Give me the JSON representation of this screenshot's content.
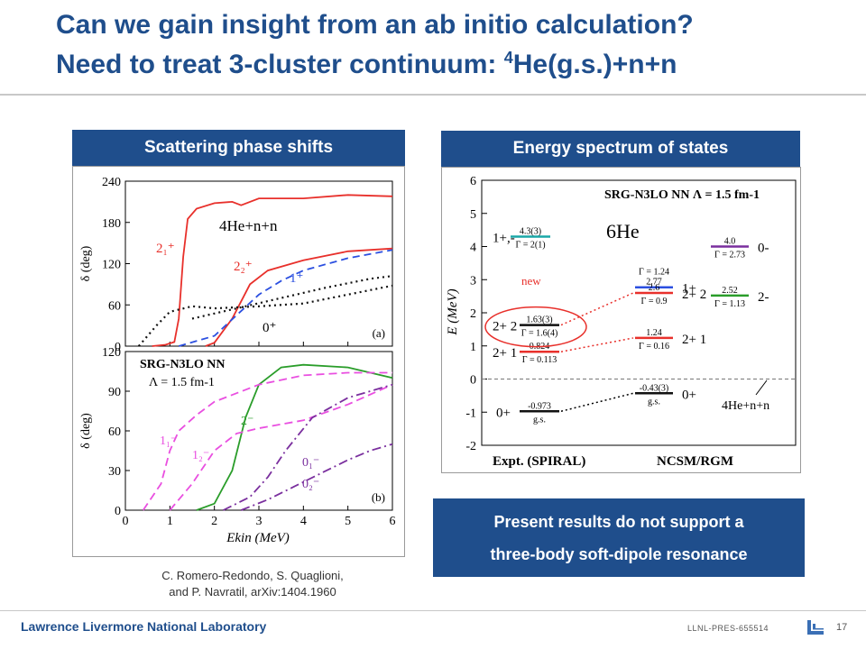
{
  "header": {
    "title_line1": "Can we gain insight from an ab initio calculation?",
    "title_line2_pre": "Need to treat 3-cluster continuum: ",
    "title_line2_sup": "4",
    "title_line2_post": "He(g.s.)+n+n"
  },
  "left_panel": {
    "heading": "Scattering phase shifts",
    "chart_data": [
      {
        "type": "line",
        "panel_label": "(a)",
        "annotation": "4He+n+n",
        "ylabel": "δ (deg)",
        "ylim": [
          0,
          240
        ],
        "yticks": [
          "0",
          "60",
          "120",
          "180",
          "240"
        ],
        "xlim": [
          0,
          6
        ],
        "series": [
          {
            "name": "2_1+",
            "color": "#e8302b",
            "x": [
              0.6,
              0.9,
              1.1,
              1.2,
              1.3,
              1.4,
              1.6,
              2.0,
              2.4,
              2.6,
              3.0,
              4.0,
              5.0,
              6.0
            ],
            "values": [
              0,
              2,
              6,
              40,
              130,
              185,
              200,
              208,
              210,
              205,
              215,
              215,
              220,
              218
            ]
          },
          {
            "name": "2_2+",
            "color": "#e8302b",
            "x": [
              1.8,
              2.0,
              2.4,
              2.8,
              3.2,
              4.0,
              5.0,
              6.0
            ],
            "values": [
              0,
              5,
              40,
              90,
              110,
              125,
              138,
              142
            ]
          },
          {
            "name": "1+",
            "color": "#2b4fe0",
            "x": [
              1.2,
              2.0,
              2.5,
              3.0,
              3.5,
              4.0,
              5.0,
              6.0
            ],
            "values": [
              0,
              15,
              45,
              75,
              95,
              110,
              128,
              140
            ]
          },
          {
            "name": "0+",
            "color": "#111111",
            "x": [
              0.3,
              0.7,
              1.0,
              1.5,
              2.0,
              3.0,
              4.0,
              5.0,
              6.0
            ],
            "values": [
              0,
              30,
              50,
              58,
              55,
              58,
              62,
              75,
              88
            ]
          },
          {
            "name": "upper dotted",
            "color": "#111111",
            "x": [
              1.5,
              2.5,
              3.5,
              4.5,
              5.5,
              6.0
            ],
            "values": [
              40,
              55,
              70,
              85,
              98,
              102
            ]
          }
        ]
      },
      {
        "type": "line",
        "panel_label": "(b)",
        "annotation_line1": "SRG-N3LO NN",
        "annotation_line2": "Λ = 1.5 fm-1",
        "ylabel": "δ (deg)",
        "xlabel": "Ekin (MeV)",
        "ylim": [
          0,
          120
        ],
        "yticks": [
          "0",
          "30",
          "60",
          "90",
          "120"
        ],
        "xlim": [
          0,
          6
        ],
        "xticks": [
          "0",
          "1",
          "2",
          "3",
          "4",
          "5",
          "6"
        ],
        "series": [
          {
            "name": "2-",
            "color": "#2a9d2a",
            "x": [
              1.6,
              2.0,
              2.4,
              2.7,
              3.0,
              3.5,
              4.0,
              5.0,
              6.0
            ],
            "values": [
              0,
              5,
              30,
              70,
              95,
              108,
              110,
              108,
              100
            ]
          },
          {
            "name": "1_1-",
            "color": "#e94fe0",
            "x": [
              0.4,
              0.8,
              1.0,
              1.2,
              1.6,
              2.0,
              3.0,
              4.0,
              5.0,
              6.0
            ],
            "values": [
              0,
              20,
              45,
              60,
              72,
              82,
              95,
              102,
              104,
              104
            ]
          },
          {
            "name": "1_2-",
            "color": "#e94fe0",
            "x": [
              1.0,
              1.5,
              2.0,
              2.5,
              3.0,
              4.0,
              5.0,
              6.0
            ],
            "values": [
              0,
              20,
              45,
              58,
              62,
              68,
              80,
              95
            ]
          },
          {
            "name": "0_1-",
            "color": "#7a2f9e",
            "x": [
              2.2,
              2.8,
              3.2,
              3.6,
              4.2,
              5.0,
              6.0
            ],
            "values": [
              0,
              10,
              25,
              45,
              70,
              85,
              95
            ]
          },
          {
            "name": "0_2-",
            "color": "#7a2f9e",
            "x": [
              2.6,
              3.2,
              3.8,
              4.4,
              5.0,
              5.5,
              6.0
            ],
            "values": [
              0,
              8,
              18,
              28,
              38,
              45,
              50
            ]
          }
        ]
      }
    ],
    "citation_line1": "C. Romero-Redondo, S. Quaglioni,",
    "citation_line2": "and  P. Navratil, arXiv:1404.1960"
  },
  "right_panel": {
    "heading": "Energy spectrum of states",
    "chart_data": {
      "type": "table",
      "title": "SRG-N3LO NN  Λ = 1.5 fm-1",
      "nucleus": "6He",
      "ylabel": "E (MeV)",
      "ylim": [
        -2,
        6
      ],
      "yticks": [
        "6",
        "5",
        "4",
        "3",
        "2",
        "1",
        "0",
        "-1",
        "-2"
      ],
      "expt_label": "Expt. (SPIRAL)",
      "ncsm_label": "NCSM/RGM",
      "new_label": "new",
      "threshold_label": "4He+n+n",
      "expt_levels": [
        {
          "state": "1+,-",
          "energy": 4.3,
          "top": "4.3(3)",
          "bottom": "Γ = 2(1)",
          "color": "#1aa7a7"
        },
        {
          "state": "2+ 2",
          "energy": 1.63,
          "top": "1.63(3)",
          "bottom": "Γ = 1.6(4)",
          "color": "#111111"
        },
        {
          "state": "2+ 1",
          "energy": 0.824,
          "top": "0.824",
          "bottom": "Γ = 0.113",
          "color": "#e8302b"
        },
        {
          "state": "0+",
          "energy": -0.973,
          "top": "-0.973",
          "bottom": "g.s.",
          "color": "#111111"
        }
      ],
      "ncsm_levels": [
        {
          "state": "1+",
          "energy": 2.77,
          "top": "Γ = 1.24",
          "mid": "2.77",
          "color": "#2b4fe0"
        },
        {
          "state": "2+ 2",
          "energy": 2.6,
          "top": "2.6",
          "bottom": "Γ = 0.9",
          "color": "#e8302b"
        },
        {
          "state": "2+ 1",
          "energy": 1.24,
          "top": "1.24",
          "bottom": "Γ = 0.16",
          "color": "#e8302b"
        },
        {
          "state": "0+",
          "energy": -0.43,
          "top": "-0.43(3)",
          "bottom": "g.s.",
          "color": "#111111"
        },
        {
          "state": "0-",
          "energy": 4.0,
          "top": "4.0",
          "bottom": "Γ = 2.73",
          "color": "#7a2f9e"
        },
        {
          "state": "2-",
          "energy": 2.52,
          "top": "2.52",
          "bottom": "Γ = 1.13",
          "color": "#2a9d2a"
        }
      ]
    }
  },
  "conclusion": {
    "line1": "Present results do not support a",
    "line2": "three-body soft-dipole resonance"
  },
  "footer": {
    "lab": "Lawrence Livermore National Laboratory",
    "doc_id": "LLNL-PRES-655514",
    "page": "17"
  }
}
